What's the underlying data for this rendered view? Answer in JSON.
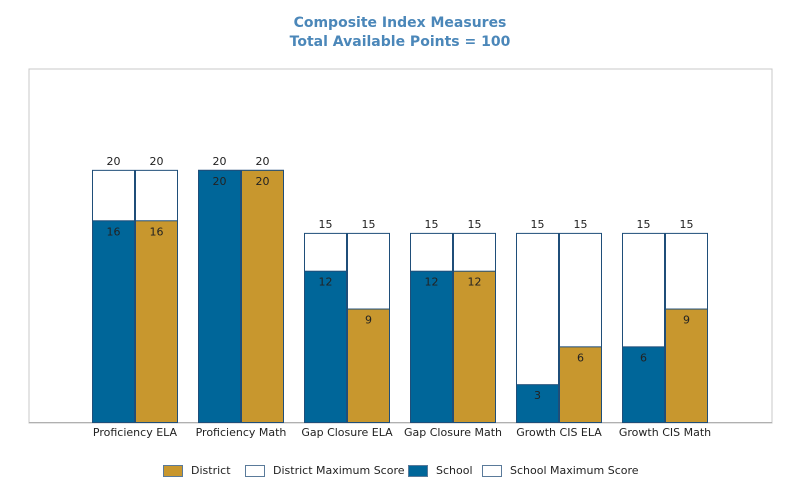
{
  "chart_data": {
    "type": "bar",
    "title": "Composite Index Measures",
    "subtitle": "Total Available Points = 100",
    "categories": [
      "Proficiency ELA",
      "Proficiency Math",
      "Gap Closure ELA",
      "Gap Closure Math",
      "Growth CIS ELA",
      "Growth CIS Math"
    ],
    "series": [
      {
        "name": "School",
        "values": [
          16,
          20,
          12,
          12,
          3,
          6
        ],
        "color": "#006699"
      },
      {
        "name": "District",
        "values": [
          16,
          20,
          9,
          12,
          6,
          9
        ],
        "color": "#c8972e"
      }
    ],
    "max_series": [
      {
        "name": "School Maximum Score",
        "values": [
          20,
          20,
          15,
          15,
          15,
          15
        ],
        "color": "#ffffff"
      },
      {
        "name": "District Maximum Score",
        "values": [
          20,
          20,
          15,
          15,
          15,
          15
        ],
        "color": "#ffffff"
      }
    ],
    "ylim": [
      0,
      28
    ],
    "grid": false,
    "legend_position": "bottom",
    "legend": [
      "District",
      "District Maximum Score",
      "School",
      "School Maximum Score"
    ]
  }
}
